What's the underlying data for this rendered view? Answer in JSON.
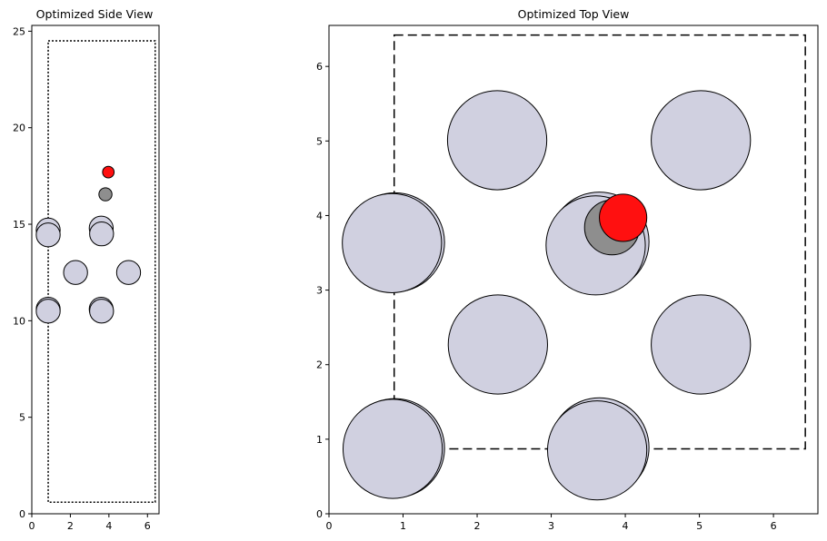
{
  "chart_data": [
    {
      "type": "scatter",
      "title": "Optimized Side View",
      "xlabel": "",
      "ylabel": "",
      "xlim": [
        0,
        6.6
      ],
      "ylim": [
        0,
        25.3
      ],
      "xticks": [
        0,
        2,
        4,
        6
      ],
      "yticks": [
        0,
        5,
        10,
        15,
        20,
        25
      ],
      "grid": false,
      "cell_outline": {
        "style": "dotted",
        "x0": 0.85,
        "x1": 6.4,
        "y0": 0.6,
        "y1": 24.5
      },
      "atoms": [
        {
          "element": "substrate",
          "color": "#d0d0e0",
          "x": 3.6,
          "y": 14.8,
          "r": 0.62
        },
        {
          "element": "substrate",
          "color": "#d0d0e0",
          "x": 3.6,
          "y": 10.6,
          "r": 0.62
        },
        {
          "element": "substrate",
          "color": "#d0d0e0",
          "x": 0.85,
          "y": 14.7,
          "r": 0.62
        },
        {
          "element": "substrate",
          "color": "#d0d0e0",
          "x": 0.85,
          "y": 10.6,
          "r": 0.62
        },
        {
          "element": "substrate",
          "color": "#d0d0e0",
          "x": 0.85,
          "y": 14.45,
          "r": 0.62
        },
        {
          "element": "substrate",
          "color": "#d0d0e0",
          "x": 0.85,
          "y": 10.5,
          "r": 0.62
        },
        {
          "element": "substrate",
          "color": "#d0d0e0",
          "x": 2.27,
          "y": 12.5,
          "r": 0.62
        },
        {
          "element": "substrate",
          "color": "#d0d0e0",
          "x": 5.02,
          "y": 12.5,
          "r": 0.62
        },
        {
          "element": "substrate",
          "color": "#d0d0e0",
          "x": 3.62,
          "y": 14.5,
          "r": 0.62
        },
        {
          "element": "substrate",
          "color": "#d0d0e0",
          "x": 3.62,
          "y": 10.5,
          "r": 0.62
        },
        {
          "element": "adsorbate",
          "color": "#8e8e8e",
          "x": 3.82,
          "y": 16.55,
          "r": 0.34
        },
        {
          "element": "adsorbate",
          "color": "#ff1010",
          "x": 3.97,
          "y": 17.7,
          "r": 0.3
        }
      ]
    },
    {
      "type": "scatter",
      "title": "Optimized Top View",
      "xlabel": "",
      "ylabel": "",
      "xlim": [
        0,
        6.6
      ],
      "ylim": [
        0,
        6.55
      ],
      "xticks": [
        0,
        1,
        2,
        3,
        4,
        5,
        6
      ],
      "yticks": [
        0,
        1,
        2,
        3,
        4,
        5,
        6
      ],
      "grid": false,
      "cell_outline": {
        "style": "dashed",
        "x0": 0.88,
        "x1": 6.43,
        "y0": 0.87,
        "y1": 6.42
      },
      "atoms": [
        {
          "element": "substrate",
          "color": "#d0d0e0",
          "x": 0.89,
          "y": 0.88,
          "r": 0.67
        },
        {
          "element": "substrate",
          "color": "#d0d0e0",
          "x": 0.86,
          "y": 0.87,
          "r": 0.67
        },
        {
          "element": "substrate",
          "color": "#d0d0e0",
          "x": 3.65,
          "y": 0.89,
          "r": 0.67
        },
        {
          "element": "substrate",
          "color": "#d0d0e0",
          "x": 3.62,
          "y": 0.85,
          "r": 0.67
        },
        {
          "element": "substrate",
          "color": "#d0d0e0",
          "x": 2.28,
          "y": 2.27,
          "r": 0.67
        },
        {
          "element": "substrate",
          "color": "#d0d0e0",
          "x": 5.02,
          "y": 2.27,
          "r": 0.67
        },
        {
          "element": "substrate",
          "color": "#d0d0e0",
          "x": 0.89,
          "y": 3.64,
          "r": 0.67
        },
        {
          "element": "substrate",
          "color": "#d0d0e0",
          "x": 0.85,
          "y": 3.63,
          "r": 0.67
        },
        {
          "element": "substrate",
          "color": "#d0d0e0",
          "x": 3.65,
          "y": 3.65,
          "r": 0.67
        },
        {
          "element": "substrate",
          "color": "#d0d0e0",
          "x": 3.6,
          "y": 3.6,
          "r": 0.67
        },
        {
          "element": "substrate",
          "color": "#d0d0e0",
          "x": 2.27,
          "y": 5.01,
          "r": 0.67
        },
        {
          "element": "substrate",
          "color": "#d0d0e0",
          "x": 5.02,
          "y": 5.01,
          "r": 0.67
        },
        {
          "element": "adsorbate",
          "color": "#8e8e8e",
          "x": 3.82,
          "y": 3.84,
          "r": 0.37
        },
        {
          "element": "adsorbate",
          "color": "#ff1010",
          "x": 3.97,
          "y": 3.97,
          "r": 0.32
        }
      ]
    }
  ]
}
